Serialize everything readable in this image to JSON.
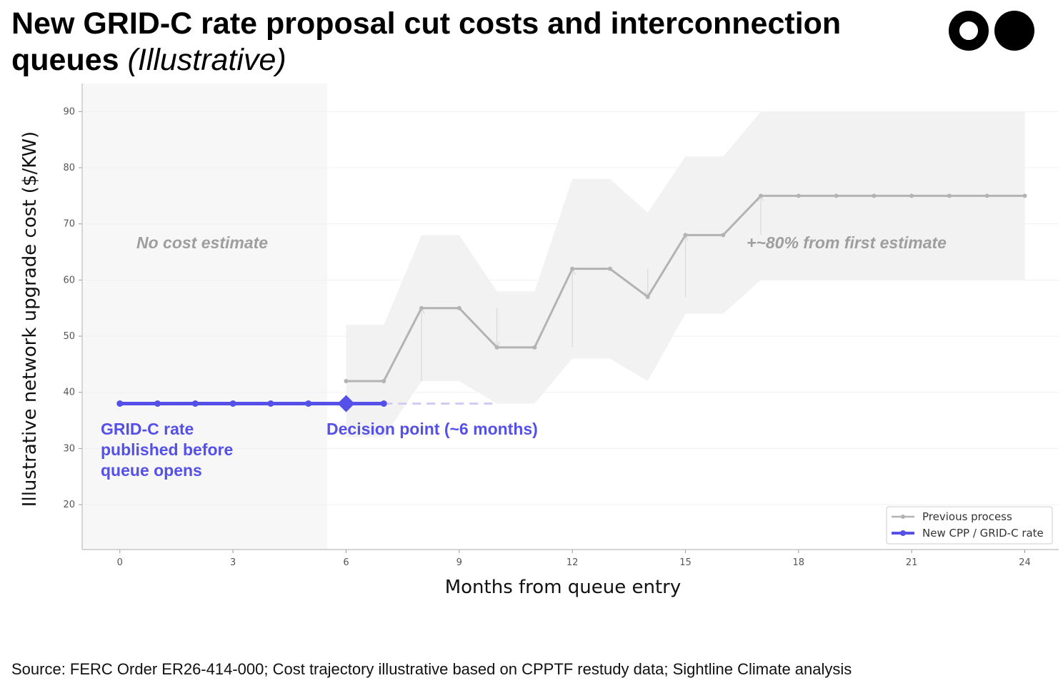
{
  "title": {
    "main": "New GRID-C rate proposal cut costs and interconnection queues",
    "qualifier": "(Illustrative)"
  },
  "source": "Source: FERC Order ER26-414-000; Cost trajectory illustrative based on CPPTF restudy data; Sightline Climate analysis",
  "chart_data": {
    "type": "line",
    "title": "New GRID-C rate proposal cut costs and interconnection queues (Illustrative)",
    "xlabel": "Months from queue entry",
    "ylabel": "Illustrative network upgrade cost ($/KW)",
    "xlim": [
      -1,
      24.9
    ],
    "ylim": [
      12,
      95
    ],
    "x_ticks": [
      0,
      3,
      6,
      9,
      12,
      15,
      18,
      21,
      24
    ],
    "y_ticks": [
      20,
      30,
      40,
      50,
      60,
      70,
      80,
      90
    ],
    "grid": true,
    "legend_position": "bottom-right",
    "series": [
      {
        "name": "Previous process",
        "color": "#b3b3b3",
        "x": [
          6,
          7,
          8,
          9,
          10,
          11,
          12,
          13,
          14,
          15,
          16,
          17,
          18,
          19,
          20,
          21,
          22,
          23,
          24
        ],
        "values": [
          42,
          42,
          55,
          55,
          48,
          48,
          62,
          62,
          57,
          68,
          68,
          75,
          75,
          75,
          75,
          75,
          75,
          75,
          75
        ]
      },
      {
        "name": "New CPP / GRID-C rate",
        "color": "#5450e8",
        "x": [
          0,
          1,
          2,
          3,
          4,
          5,
          6,
          7
        ],
        "values": [
          38,
          38,
          38,
          38,
          38,
          38,
          38,
          38
        ]
      }
    ],
    "uncertainty_band": {
      "x": [
        6,
        7,
        8,
        9,
        10,
        11,
        12,
        13,
        14,
        15,
        16,
        17,
        18,
        19,
        20,
        21,
        22,
        23,
        24
      ],
      "upper": [
        52,
        52,
        68,
        68,
        58,
        58,
        78,
        78,
        72,
        82,
        82,
        90,
        90,
        90,
        90,
        90,
        90,
        90,
        90
      ],
      "lower": [
        32,
        32,
        42,
        42,
        38,
        38,
        46,
        46,
        42,
        54,
        54,
        60,
        60,
        60,
        60,
        60,
        60,
        60,
        60
      ]
    },
    "estimate_arrows": [
      {
        "x": 8,
        "from": 42,
        "to": 55
      },
      {
        "x": 10,
        "from": 55,
        "to": 48
      },
      {
        "x": 12,
        "from": 48,
        "to": 62
      },
      {
        "x": 14,
        "from": 62,
        "to": 57
      },
      {
        "x": 15,
        "from": 57,
        "to": 68
      },
      {
        "x": 17,
        "from": 68,
        "to": 75
      }
    ],
    "shaded_region": {
      "x_start": -1,
      "x_end": 5.5,
      "label": "No cost estimate"
    },
    "decision_point": {
      "x": 6,
      "y": 38,
      "label": "Decision point (~6 months)"
    },
    "dashed_extension": {
      "x_start": 7,
      "x_end": 10,
      "y": 38
    },
    "annotations": {
      "increase": "+~80% from first estimate",
      "grid_c_lines": [
        "GRID-C rate",
        "published before",
        "queue opens"
      ]
    }
  },
  "colors": {
    "accent": "#5450e8",
    "previous": "#b3b3b3",
    "band": "#f2f2f2",
    "shade": "#f7f7f7"
  }
}
